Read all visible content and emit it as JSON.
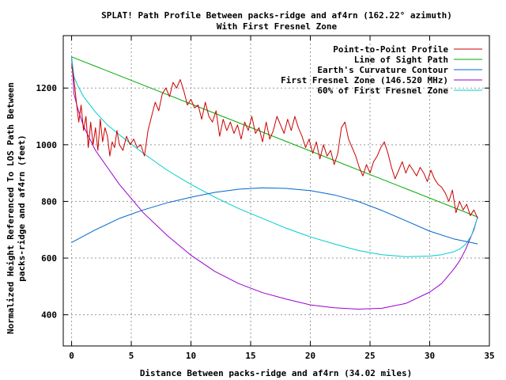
{
  "chart_data": {
    "type": "line",
    "title": "SPLAT! Path Profile Between packs-ridge and af4rn (162.22° azimuth)",
    "subtitle": "With First Fresnel Zone",
    "xlabel": "Distance Between packs-ridge and af4rn (34.02 miles)",
    "ylabel_line1": "Normalized Height Referenced To LOS Path Between",
    "ylabel_line2": "packs-ridge and af4rn (feet)",
    "xlim": [
      -0.7,
      35
    ],
    "ylim": [
      290,
      1385
    ],
    "x_ticks": [
      0,
      5,
      10,
      15,
      20,
      25,
      30,
      35
    ],
    "y_ticks": [
      400,
      600,
      800,
      1000,
      1200
    ],
    "grid": true,
    "legend_position": "top-right",
    "series": [
      {
        "name": "Point-to-Point Profile",
        "color": "#cc0000",
        "x": [
          0,
          0.2,
          0.4,
          0.6,
          0.8,
          1.0,
          1.2,
          1.4,
          1.6,
          1.8,
          2.0,
          2.2,
          2.4,
          2.6,
          2.8,
          3.0,
          3.2,
          3.4,
          3.6,
          3.8,
          4.0,
          4.3,
          4.6,
          4.9,
          5.2,
          5.5,
          5.8,
          6.1,
          6.4,
          6.7,
          7.0,
          7.3,
          7.6,
          7.9,
          8.2,
          8.5,
          8.8,
          9.1,
          9.4,
          9.7,
          10.0,
          10.3,
          10.6,
          10.9,
          11.2,
          11.5,
          11.8,
          12.1,
          12.4,
          12.7,
          13.0,
          13.3,
          13.6,
          13.9,
          14.2,
          14.5,
          14.8,
          15.1,
          15.4,
          15.7,
          16.0,
          16.3,
          16.6,
          16.9,
          17.2,
          17.5,
          17.8,
          18.1,
          18.4,
          18.7,
          19.0,
          19.3,
          19.6,
          19.9,
          20.2,
          20.5,
          20.8,
          21.1,
          21.4,
          21.7,
          22.0,
          22.3,
          22.6,
          22.9,
          23.2,
          23.5,
          23.8,
          24.1,
          24.4,
          24.7,
          25.0,
          25.3,
          25.6,
          25.9,
          26.2,
          26.5,
          26.8,
          27.1,
          27.4,
          27.7,
          28.0,
          28.3,
          28.6,
          28.9,
          29.2,
          29.5,
          29.8,
          30.1,
          30.4,
          30.7,
          31.0,
          31.3,
          31.6,
          31.9,
          32.2,
          32.5,
          32.8,
          33.1,
          33.4,
          33.7,
          34.02
        ],
        "values": [
          1280,
          1230,
          1150,
          1080,
          1140,
          1050,
          1100,
          990,
          1080,
          1000,
          1060,
          980,
          1090,
          1010,
          1060,
          1030,
          960,
          1010,
          990,
          1050,
          1000,
          980,
          1030,
          1000,
          1020,
          990,
          1000,
          960,
          1050,
          1100,
          1150,
          1120,
          1180,
          1200,
          1170,
          1220,
          1200,
          1230,
          1190,
          1140,
          1160,
          1130,
          1140,
          1090,
          1150,
          1100,
          1080,
          1120,
          1030,
          1090,
          1050,
          1080,
          1040,
          1070,
          1020,
          1080,
          1050,
          1100,
          1040,
          1060,
          1010,
          1080,
          1020,
          1050,
          1100,
          1070,
          1040,
          1090,
          1050,
          1100,
          1060,
          1030,
          990,
          1020,
          970,
          1010,
          950,
          1000,
          960,
          980,
          930,
          970,
          1060,
          1080,
          1020,
          990,
          960,
          920,
          890,
          930,
          900,
          940,
          960,
          990,
          1010,
          970,
          920,
          880,
          910,
          940,
          900,
          930,
          910,
          890,
          920,
          900,
          870,
          910,
          880,
          860,
          850,
          830,
          800,
          840,
          760,
          800,
          770,
          790,
          750,
          770,
          740
        ]
      },
      {
        "name": "Line of Sight Path",
        "color": "#00aa00",
        "x": [
          0,
          34.02
        ],
        "values": [
          1310,
          745
        ]
      },
      {
        "name": "Earth's Curvature Contour",
        "color": "#0066cc",
        "x": [
          0,
          2,
          4,
          6,
          8,
          10,
          12,
          14,
          16,
          18,
          20,
          22,
          24,
          26,
          28,
          30,
          32,
          34.02
        ],
        "values": [
          655,
          700,
          740,
          770,
          795,
          815,
          832,
          843,
          848,
          846,
          838,
          823,
          800,
          768,
          732,
          695,
          668,
          650
        ]
      },
      {
        "name": "First Fresnel Zone (146.520 MHz)",
        "color": "#9900cc",
        "x": [
          0,
          0.2,
          0.5,
          1,
          2,
          3,
          4,
          6,
          8,
          10,
          12,
          14,
          16,
          18,
          20,
          22,
          24,
          26,
          28,
          30,
          31,
          32,
          32.5,
          33,
          33.4,
          33.7,
          33.9,
          34.02
        ],
        "values": [
          1310,
          1180,
          1130,
          1065,
          980,
          920,
          860,
          760,
          680,
          610,
          553,
          510,
          478,
          455,
          435,
          425,
          420,
          423,
          440,
          480,
          510,
          560,
          590,
          630,
          670,
          700,
          730,
          745
        ]
      },
      {
        "name": "60% of First Fresnel Zone",
        "color": "#00cccc",
        "x": [
          0,
          0.2,
          0.5,
          1,
          2,
          3,
          4,
          6,
          8,
          10,
          12,
          14,
          16,
          18,
          20,
          22,
          24,
          26,
          28,
          30,
          31,
          32,
          32.5,
          33,
          33.5,
          34.02
        ],
        "values": [
          1310,
          1240,
          1210,
          1170,
          1115,
          1070,
          1035,
          970,
          910,
          860,
          815,
          775,
          740,
          705,
          675,
          650,
          627,
          612,
          605,
          607,
          612,
          622,
          632,
          648,
          680,
          745
        ]
      }
    ]
  }
}
